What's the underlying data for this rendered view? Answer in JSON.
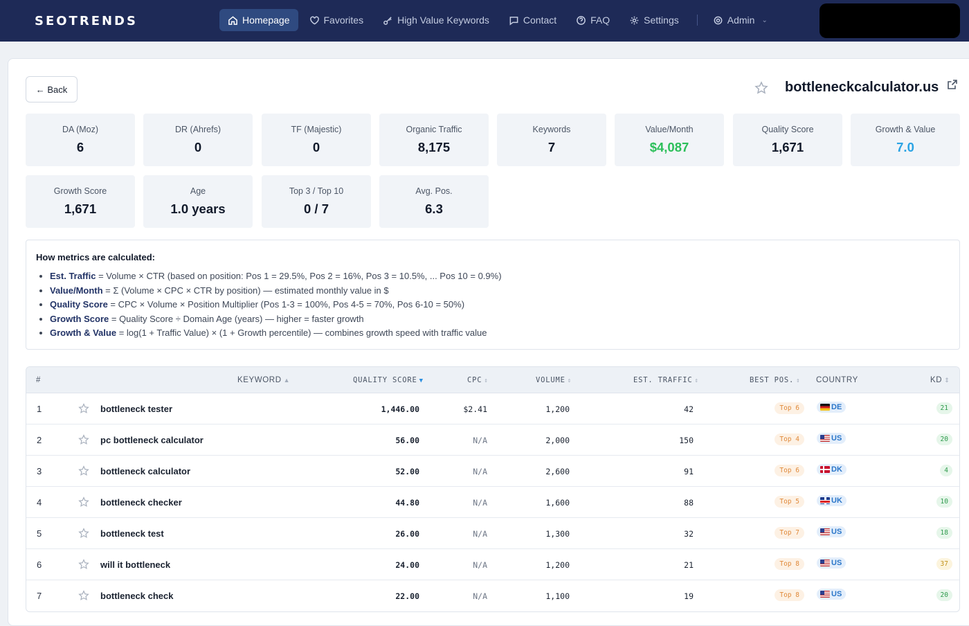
{
  "app": {
    "logo": "SEOTRENDS"
  },
  "nav": {
    "items": [
      {
        "label": "Homepage",
        "icon": "home-icon",
        "active": true
      },
      {
        "label": "Favorites",
        "icon": "heart-icon"
      },
      {
        "label": "High Value Keywords",
        "icon": "key-icon"
      },
      {
        "label": "Contact",
        "icon": "chat-icon"
      },
      {
        "label": "FAQ",
        "icon": "help-icon"
      },
      {
        "label": "Settings",
        "icon": "gear-icon"
      }
    ],
    "admin": {
      "label": "Admin",
      "icon": "gear-icon"
    }
  },
  "page": {
    "back_label": "← Back",
    "domain": "bottleneckcalculator.us"
  },
  "metrics": [
    {
      "label": "DA (Moz)",
      "value": "6"
    },
    {
      "label": "DR (Ahrefs)",
      "value": "0"
    },
    {
      "label": "TF (Majestic)",
      "value": "0"
    },
    {
      "label": "Organic Traffic",
      "value": "8,175"
    },
    {
      "label": "Keywords",
      "value": "7"
    },
    {
      "label": "Value/Month",
      "value": "$4,087",
      "color": "#2cbf5a"
    },
    {
      "label": "Quality Score",
      "value": "1,671"
    },
    {
      "label": "Growth & Value",
      "value": "7.0",
      "color": "#2aa3e4"
    },
    {
      "label": "Growth Score",
      "value": "1,671"
    },
    {
      "label": "Age",
      "value": "1.0 years"
    },
    {
      "label": "Top 3 / Top 10",
      "value": "0 / 7"
    },
    {
      "label": "Avg. Pos.",
      "value": "6.3"
    }
  ],
  "info": {
    "title": "How metrics are calculated:",
    "items": [
      {
        "term": "Est. Traffic",
        "text": " = Volume × CTR (based on position: Pos 1 = 29.5%, Pos 2 = 16%, Pos 3 = 10.5%, ... Pos 10 = 0.9%)"
      },
      {
        "term": "Value/Month",
        "text": " = Σ (Volume × CPC × CTR by position) — estimated monthly value in $"
      },
      {
        "term": "Quality Score",
        "text": " = CPC × Volume × Position Multiplier (Pos 1-3 = 100%, Pos 4-5 = 70%, Pos 6-10 = 50%)"
      },
      {
        "term": "Growth Score",
        "text": " = Quality Score ÷ Domain Age (years) — higher = faster growth"
      },
      {
        "term": "Growth & Value",
        "text": " = log(1 + Traffic Value) × (1 + Growth percentile) — combines growth speed with traffic value"
      }
    ]
  },
  "table": {
    "headers": {
      "num": "#",
      "keyword": "KEYWORD",
      "quality": "QUALITY SCORE",
      "cpc": "CPC",
      "volume": "VOLUME",
      "traffic": "EST. TRAFFIC",
      "pos": "BEST POS.",
      "country": "COUNTRY",
      "kd": "KD"
    },
    "rows": [
      {
        "n": "1",
        "kw": "bottleneck tester",
        "qs": "1,446.00",
        "cpc": "$2.41",
        "vol": "1,200",
        "tr": "42",
        "pos": "Top 6",
        "cc": "DE",
        "flag": "de",
        "kd": "21",
        "kdc": "g"
      },
      {
        "n": "2",
        "kw": "pc bottleneck calculator",
        "qs": "56.00",
        "cpc": "N/A",
        "vol": "2,000",
        "tr": "150",
        "pos": "Top 4",
        "cc": "US",
        "flag": "us",
        "kd": "20",
        "kdc": "g"
      },
      {
        "n": "3",
        "kw": "bottleneck calculator",
        "qs": "52.00",
        "cpc": "N/A",
        "vol": "2,600",
        "tr": "91",
        "pos": "Top 6",
        "cc": "DK",
        "flag": "dk",
        "kd": "4",
        "kdc": "g"
      },
      {
        "n": "4",
        "kw": "bottleneck checker",
        "qs": "44.80",
        "cpc": "N/A",
        "vol": "1,600",
        "tr": "88",
        "pos": "Top 5",
        "cc": "UK",
        "flag": "uk",
        "kd": "10",
        "kdc": "g"
      },
      {
        "n": "5",
        "kw": "bottleneck test",
        "qs": "26.00",
        "cpc": "N/A",
        "vol": "1,300",
        "tr": "32",
        "pos": "Top 7",
        "cc": "US",
        "flag": "us",
        "kd": "18",
        "kdc": "g"
      },
      {
        "n": "6",
        "kw": "will it bottleneck",
        "qs": "24.00",
        "cpc": "N/A",
        "vol": "1,200",
        "tr": "21",
        "pos": "Top 8",
        "cc": "US",
        "flag": "us",
        "kd": "37",
        "kdc": "y"
      },
      {
        "n": "7",
        "kw": "bottleneck check",
        "qs": "22.00",
        "cpc": "N/A",
        "vol": "1,100",
        "tr": "19",
        "pos": "Top 8",
        "cc": "US",
        "flag": "us",
        "kd": "20",
        "kdc": "g"
      }
    ]
  }
}
